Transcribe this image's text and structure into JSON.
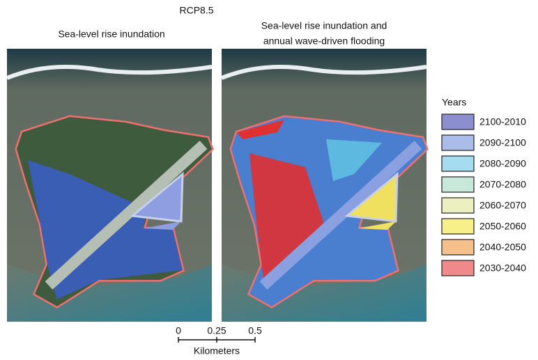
{
  "title": "RCP8.5",
  "panels": [
    {
      "title": "Sea-level rise inundation"
    },
    {
      "title_lines": [
        "Sea-level rise inundation and",
        "annual wave-driven flooding"
      ]
    }
  ],
  "legend": {
    "title": "Years",
    "items": [
      {
        "label": "2100-2010",
        "color": "#8b8fd0"
      },
      {
        "label": "2090-2100",
        "color": "#a9bde8"
      },
      {
        "label": "2080-2090",
        "color": "#a6dcef"
      },
      {
        "label": "2070-2080",
        "color": "#c8e8da"
      },
      {
        "label": "2060-2070",
        "color": "#ecefbf"
      },
      {
        "label": "2050-2060",
        "color": "#f7ef8a"
      },
      {
        "label": "2040-2050",
        "color": "#f6c08c"
      },
      {
        "label": "2030-2040",
        "color": "#f08a8a"
      }
    ]
  },
  "scale_bar": {
    "ticks": [
      0,
      0.25,
      0.5
    ],
    "unit": "Kilometers"
  }
}
